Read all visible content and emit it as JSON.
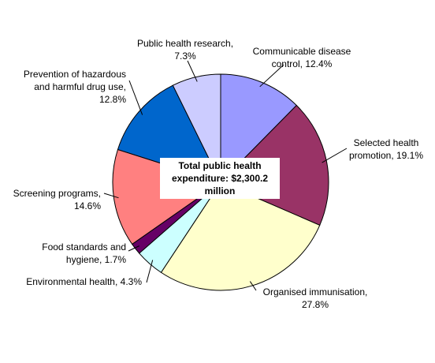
{
  "chart_data": {
    "type": "pie",
    "center_label": "Total public health expenditure: $2,300.2 million",
    "categories": [
      "Communicable disease control,",
      "Selected health promotion,",
      "Organised immunisation,",
      "Environmental health,",
      "Food standards and hygiene,",
      "Screening programs,",
      "Prevention of hazardous and harmful drug use,",
      "Public health research,"
    ],
    "values": [
      12.4,
      19.1,
      27.8,
      4.3,
      1.7,
      14.6,
      12.8,
      7.3
    ],
    "value_labels": [
      "12.4%",
      "19.1%",
      "27.8%",
      "4.3%",
      "1.7%",
      "14.6%",
      "12.8%",
      "7.3%"
    ],
    "colors": [
      "#9999ff",
      "#993366",
      "#ffffcc",
      "#ccffff",
      "#660066",
      "#ff8080",
      "#0066cc",
      "#ccccff"
    ]
  }
}
